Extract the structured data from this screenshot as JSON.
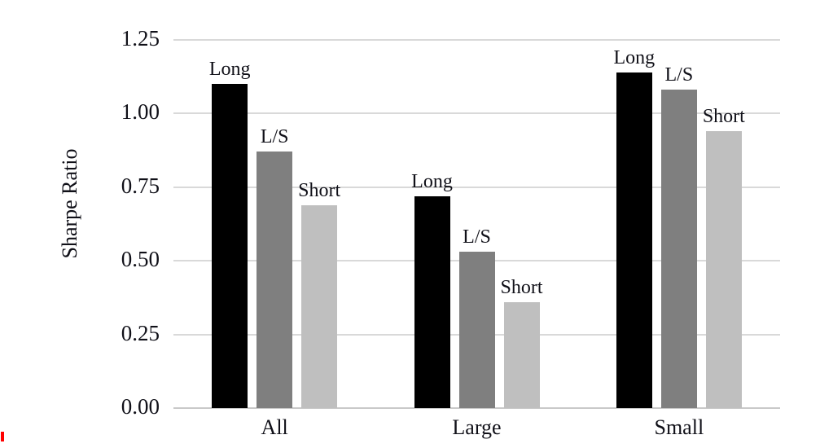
{
  "chart_data": {
    "type": "bar",
    "title": "",
    "xlabel": "",
    "ylabel": "Sharpe Ratio",
    "ylim": [
      0,
      1.25
    ],
    "grid": true,
    "legend_position": "none",
    "bar_labels_shown": true,
    "yticks": [
      {
        "value": 1.25,
        "label": "1.25"
      },
      {
        "value": 1.0,
        "label": "1.00"
      },
      {
        "value": 0.75,
        "label": "0.75"
      },
      {
        "value": 0.5,
        "label": "0.50"
      },
      {
        "value": 0.25,
        "label": "0.25"
      },
      {
        "value": 0.0,
        "label": "0.00"
      }
    ],
    "categories": [
      "All",
      "Large",
      "Small"
    ],
    "series": [
      {
        "name": "Long",
        "color": "#000000",
        "values": [
          1.1,
          0.72,
          1.14
        ]
      },
      {
        "name": "L/S",
        "color": "#7f7f7f",
        "values": [
          0.87,
          0.53,
          1.08
        ]
      },
      {
        "name": "Short",
        "color": "#bfbfbf",
        "values": [
          0.69,
          0.36,
          0.94
        ]
      }
    ]
  },
  "colors": {
    "background": "#ffffff",
    "gridline": "#d9d9d9",
    "axis_line": "#c9c9c9",
    "text": "#101018",
    "red_mark": "#ff0000"
  }
}
